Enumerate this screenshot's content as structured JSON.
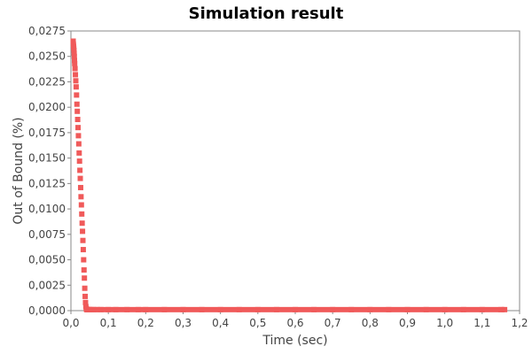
{
  "chart_data": {
    "type": "scatter",
    "title": "Simulation result",
    "xlabel": "Time (sec)",
    "ylabel": "Out of Bound (%)",
    "xlim": [
      0.0,
      1.2
    ],
    "ylim": [
      0.0,
      0.0275
    ],
    "x_ticks": [
      "0,0",
      "0,1",
      "0,2",
      "0,3",
      "0,4",
      "0,5",
      "0,6",
      "0,7",
      "0,8",
      "0,9",
      "1,0",
      "1,1",
      "1,2"
    ],
    "y_ticks": [
      "0,0000",
      "0,0025",
      "0,0050",
      "0,0075",
      "0,0100",
      "0,0125",
      "0,0150",
      "0,0175",
      "0,0200",
      "0,0225",
      "0,0250",
      "0,0275"
    ],
    "grid": false,
    "marker_color": "#f05a5a",
    "series": [
      {
        "x": [
          0.006,
          0.0065,
          0.007,
          0.0075,
          0.008,
          0.0085,
          0.009,
          0.0095,
          0.01,
          0.011,
          0.012,
          0.013,
          0.014,
          0.015,
          0.016,
          0.017,
          0.018,
          0.019,
          0.02,
          0.021,
          0.022,
          0.023,
          0.024,
          0.025,
          0.026,
          0.027,
          0.028,
          0.029,
          0.03,
          0.031,
          0.032,
          0.033,
          0.034,
          0.035,
          0.036,
          0.037,
          0.038,
          0.039,
          0.04,
          0.041,
          0.042,
          0.044,
          0.046,
          0.048,
          0.05,
          0.055,
          0.06,
          0.07,
          0.08,
          0.1,
          0.12,
          0.15,
          0.18,
          0.2,
          0.25,
          0.3,
          0.35,
          0.4,
          0.45,
          0.5,
          0.55,
          0.6,
          0.65,
          0.7,
          0.75,
          0.8,
          0.85,
          0.9,
          0.95,
          1.0,
          1.05,
          1.1,
          1.15,
          1.16
        ],
        "y": [
          0.0265,
          0.0262,
          0.026,
          0.0258,
          0.0256,
          0.0253,
          0.025,
          0.0246,
          0.0243,
          0.0238,
          0.0232,
          0.0226,
          0.022,
          0.0212,
          0.0203,
          0.0196,
          0.0188,
          0.018,
          0.0172,
          0.0164,
          0.0155,
          0.0147,
          0.0138,
          0.013,
          0.0121,
          0.0112,
          0.0104,
          0.0095,
          0.0086,
          0.0078,
          0.0069,
          0.006,
          0.005,
          0.004,
          0.0032,
          0.0022,
          0.0014,
          0.0008,
          0.0004,
          0.0002,
          0.0001,
          0.0001,
          0.0001,
          0.0001,
          0.0001,
          0.0001,
          0.0001,
          0.0001,
          0.0001,
          0.0001,
          0.0001,
          0.0001,
          0.0001,
          0.0001,
          0.0001,
          0.0001,
          0.0001,
          0.0001,
          0.0001,
          0.0001,
          0.0001,
          0.0001,
          0.0001,
          0.0001,
          0.0001,
          0.0001,
          0.0001,
          0.0001,
          0.0001,
          0.0001,
          0.0001,
          0.0001,
          0.0001,
          0.0001
        ]
      }
    ]
  }
}
